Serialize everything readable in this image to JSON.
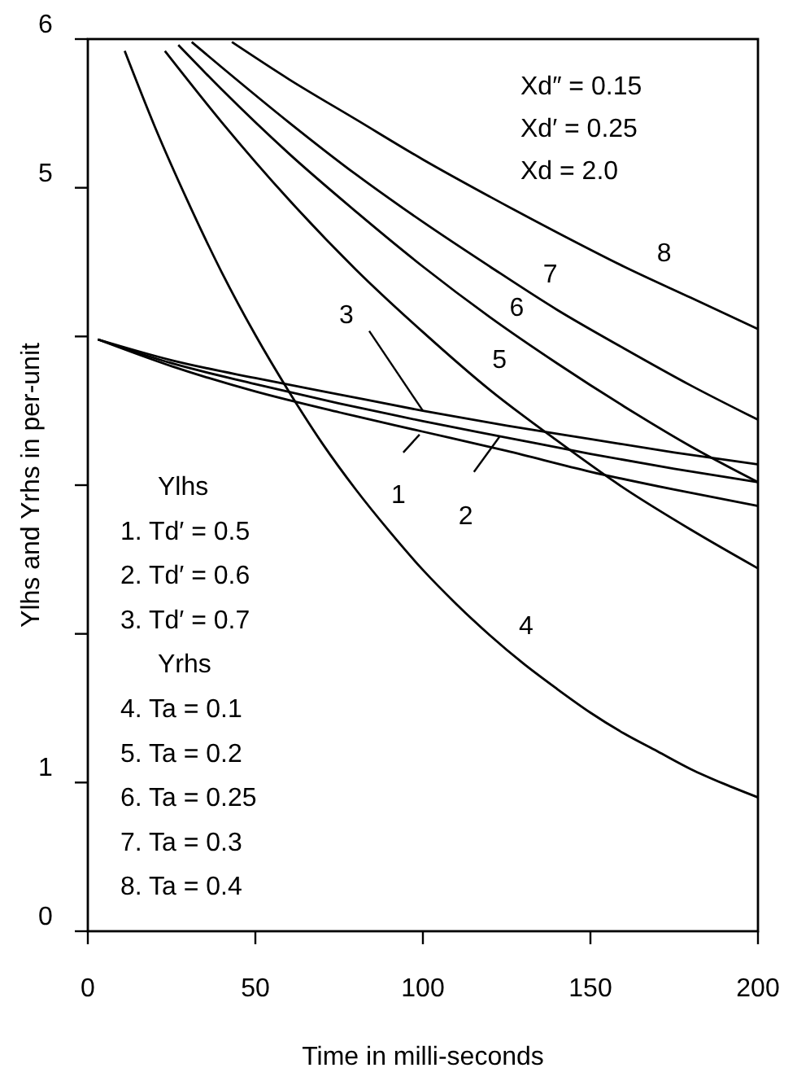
{
  "chart_data": {
    "type": "line",
    "xlabel": "Time in milli-seconds",
    "ylabel": "Ylhs and Yrhs in per-unit",
    "xlim": [
      0,
      200
    ],
    "xticks": [
      0,
      50,
      100,
      150,
      200
    ],
    "ylim": [
      0,
      6
    ],
    "yticks": [
      0,
      1,
      {
        "value": 2,
        "label": null
      },
      {
        "value": 3,
        "label": null
      },
      {
        "value": 4,
        "label": null
      },
      5,
      6
    ],
    "grid": false,
    "marker": "none",
    "line_style": "solid",
    "series": [
      {
        "color": "#000000",
        "x": [
          3,
          25,
          50,
          75,
          100,
          125,
          150,
          175,
          200
        ],
        "values": [
          3.98,
          3.8,
          3.63,
          3.49,
          3.36,
          3.23,
          3.09,
          2.97,
          2.86
        ]
      },
      {
        "color": "#000000",
        "x": [
          3,
          25,
          50,
          75,
          100,
          125,
          150,
          175,
          200
        ],
        "values": [
          3.98,
          3.82,
          3.68,
          3.55,
          3.43,
          3.32,
          3.21,
          3.11,
          3.02
        ]
      },
      {
        "color": "#000000",
        "x": [
          3,
          25,
          50,
          75,
          100,
          125,
          150,
          175,
          200
        ],
        "values": [
          3.98,
          3.84,
          3.72,
          3.61,
          3.5,
          3.4,
          3.31,
          3.22,
          3.14
        ]
      },
      {
        "color": "#000000",
        "x": [
          11,
          20,
          30,
          40,
          50,
          60,
          70,
          80,
          90,
          100,
          110,
          120,
          130,
          140,
          150,
          160,
          170,
          180,
          190,
          200
        ],
        "values": [
          5.92,
          5.41,
          4.9,
          4.43,
          4.01,
          3.63,
          3.28,
          2.97,
          2.69,
          2.43,
          2.2,
          1.99,
          1.8,
          1.63,
          1.47,
          1.33,
          1.21,
          1.09,
          0.99,
          0.9
        ]
      },
      {
        "color": "#000000",
        "x": [
          23,
          40,
          60,
          80,
          100,
          120,
          140,
          160,
          180,
          200
        ],
        "values": [
          5.92,
          5.44,
          4.92,
          4.45,
          4.03,
          3.64,
          3.3,
          2.98,
          2.7,
          2.44
        ]
      },
      {
        "color": "#000000",
        "x": [
          27,
          40,
          60,
          80,
          100,
          120,
          140,
          160,
          180,
          200
        ],
        "values": [
          5.96,
          5.66,
          5.23,
          4.84,
          4.47,
          4.13,
          3.82,
          3.53,
          3.26,
          3.02
        ]
      },
      {
        "color": "#000000",
        "x": [
          31,
          40,
          60,
          80,
          100,
          120,
          140,
          160,
          180,
          200
        ],
        "values": [
          5.98,
          5.81,
          5.44,
          5.09,
          4.77,
          4.47,
          4.18,
          3.92,
          3.67,
          3.44
        ]
      },
      {
        "color": "#000000",
        "x": [
          43,
          60,
          80,
          100,
          120,
          140,
          160,
          180,
          200
        ],
        "values": [
          5.98,
          5.73,
          5.46,
          5.19,
          4.94,
          4.7,
          4.47,
          4.26,
          4.05
        ]
      }
    ],
    "annotations": [
      "Xd″ = 0.15",
      "Xd′ = 0.25",
      "Xd = 2.0",
      "Ylhs",
      "1.  Td′ = 0.5",
      "2.  Td′ = 0.6",
      "3.  Td′ = 0.7",
      "Yrhs",
      "4.  Ta = 0.1",
      "5.  Ta = 0.2",
      "6.  Ta = 0.25",
      "7.  Ta = 0.3",
      "8.  Ta = 0.4",
      {
        "text": "1",
        "x": 99,
        "y": 3.34
      },
      {
        "text": "2",
        "x": 123,
        "y": 3.33
      },
      {
        "text": "3",
        "x": 100,
        "y": 3.5
      },
      {
        "text": "4",
        "x": 125,
        "y": 1.91
      },
      {
        "text": "5",
        "x": 118,
        "y": 3.68
      },
      {
        "text": "6",
        "x": 128,
        "y": 4.02
      },
      {
        "text": "7",
        "x": 138,
        "y": 4.22
      },
      {
        "text": "8",
        "x": 172,
        "y": 4.35
      }
    ]
  }
}
